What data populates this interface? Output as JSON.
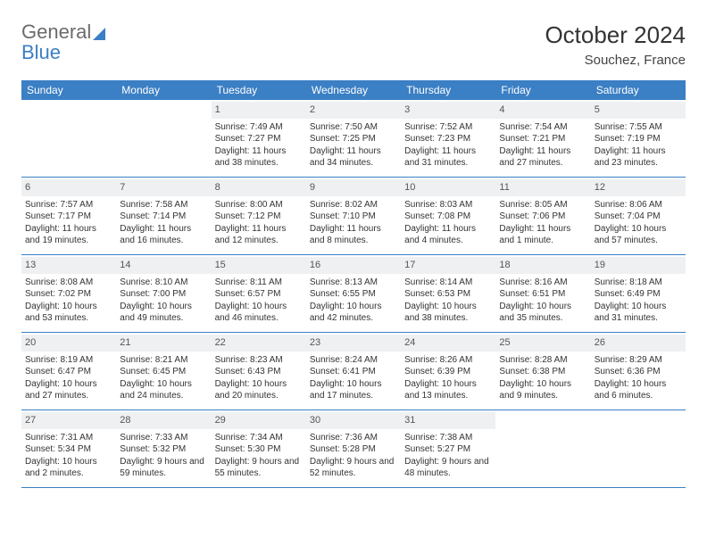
{
  "brand": {
    "word1": "General",
    "word2": "Blue"
  },
  "header": {
    "title": "October 2024",
    "location": "Souchez, France"
  },
  "colors": {
    "brand_gray": "#6b6b6b",
    "brand_blue": "#3b7fc4",
    "header_bg": "#3b7fc4",
    "daynum_bg": "#eef0f2",
    "text": "#333333"
  },
  "dow": [
    "Sunday",
    "Monday",
    "Tuesday",
    "Wednesday",
    "Thursday",
    "Friday",
    "Saturday"
  ],
  "weeks": [
    [
      null,
      null,
      {
        "d": "1",
        "sr": "7:49 AM",
        "ss": "7:27 PM",
        "dl": "11 hours and 38 minutes."
      },
      {
        "d": "2",
        "sr": "7:50 AM",
        "ss": "7:25 PM",
        "dl": "11 hours and 34 minutes."
      },
      {
        "d": "3",
        "sr": "7:52 AM",
        "ss": "7:23 PM",
        "dl": "11 hours and 31 minutes."
      },
      {
        "d": "4",
        "sr": "7:54 AM",
        "ss": "7:21 PM",
        "dl": "11 hours and 27 minutes."
      },
      {
        "d": "5",
        "sr": "7:55 AM",
        "ss": "7:19 PM",
        "dl": "11 hours and 23 minutes."
      }
    ],
    [
      {
        "d": "6",
        "sr": "7:57 AM",
        "ss": "7:17 PM",
        "dl": "11 hours and 19 minutes."
      },
      {
        "d": "7",
        "sr": "7:58 AM",
        "ss": "7:14 PM",
        "dl": "11 hours and 16 minutes."
      },
      {
        "d": "8",
        "sr": "8:00 AM",
        "ss": "7:12 PM",
        "dl": "11 hours and 12 minutes."
      },
      {
        "d": "9",
        "sr": "8:02 AM",
        "ss": "7:10 PM",
        "dl": "11 hours and 8 minutes."
      },
      {
        "d": "10",
        "sr": "8:03 AM",
        "ss": "7:08 PM",
        "dl": "11 hours and 4 minutes."
      },
      {
        "d": "11",
        "sr": "8:05 AM",
        "ss": "7:06 PM",
        "dl": "11 hours and 1 minute."
      },
      {
        "d": "12",
        "sr": "8:06 AM",
        "ss": "7:04 PM",
        "dl": "10 hours and 57 minutes."
      }
    ],
    [
      {
        "d": "13",
        "sr": "8:08 AM",
        "ss": "7:02 PM",
        "dl": "10 hours and 53 minutes."
      },
      {
        "d": "14",
        "sr": "8:10 AM",
        "ss": "7:00 PM",
        "dl": "10 hours and 49 minutes."
      },
      {
        "d": "15",
        "sr": "8:11 AM",
        "ss": "6:57 PM",
        "dl": "10 hours and 46 minutes."
      },
      {
        "d": "16",
        "sr": "8:13 AM",
        "ss": "6:55 PM",
        "dl": "10 hours and 42 minutes."
      },
      {
        "d": "17",
        "sr": "8:14 AM",
        "ss": "6:53 PM",
        "dl": "10 hours and 38 minutes."
      },
      {
        "d": "18",
        "sr": "8:16 AM",
        "ss": "6:51 PM",
        "dl": "10 hours and 35 minutes."
      },
      {
        "d": "19",
        "sr": "8:18 AM",
        "ss": "6:49 PM",
        "dl": "10 hours and 31 minutes."
      }
    ],
    [
      {
        "d": "20",
        "sr": "8:19 AM",
        "ss": "6:47 PM",
        "dl": "10 hours and 27 minutes."
      },
      {
        "d": "21",
        "sr": "8:21 AM",
        "ss": "6:45 PM",
        "dl": "10 hours and 24 minutes."
      },
      {
        "d": "22",
        "sr": "8:23 AM",
        "ss": "6:43 PM",
        "dl": "10 hours and 20 minutes."
      },
      {
        "d": "23",
        "sr": "8:24 AM",
        "ss": "6:41 PM",
        "dl": "10 hours and 17 minutes."
      },
      {
        "d": "24",
        "sr": "8:26 AM",
        "ss": "6:39 PM",
        "dl": "10 hours and 13 minutes."
      },
      {
        "d": "25",
        "sr": "8:28 AM",
        "ss": "6:38 PM",
        "dl": "10 hours and 9 minutes."
      },
      {
        "d": "26",
        "sr": "8:29 AM",
        "ss": "6:36 PM",
        "dl": "10 hours and 6 minutes."
      }
    ],
    [
      {
        "d": "27",
        "sr": "7:31 AM",
        "ss": "5:34 PM",
        "dl": "10 hours and 2 minutes."
      },
      {
        "d": "28",
        "sr": "7:33 AM",
        "ss": "5:32 PM",
        "dl": "9 hours and 59 minutes."
      },
      {
        "d": "29",
        "sr": "7:34 AM",
        "ss": "5:30 PM",
        "dl": "9 hours and 55 minutes."
      },
      {
        "d": "30",
        "sr": "7:36 AM",
        "ss": "5:28 PM",
        "dl": "9 hours and 52 minutes."
      },
      {
        "d": "31",
        "sr": "7:38 AM",
        "ss": "5:27 PM",
        "dl": "9 hours and 48 minutes."
      },
      null,
      null
    ]
  ],
  "labels": {
    "sunrise": "Sunrise:",
    "sunset": "Sunset:",
    "daylight": "Daylight:"
  }
}
